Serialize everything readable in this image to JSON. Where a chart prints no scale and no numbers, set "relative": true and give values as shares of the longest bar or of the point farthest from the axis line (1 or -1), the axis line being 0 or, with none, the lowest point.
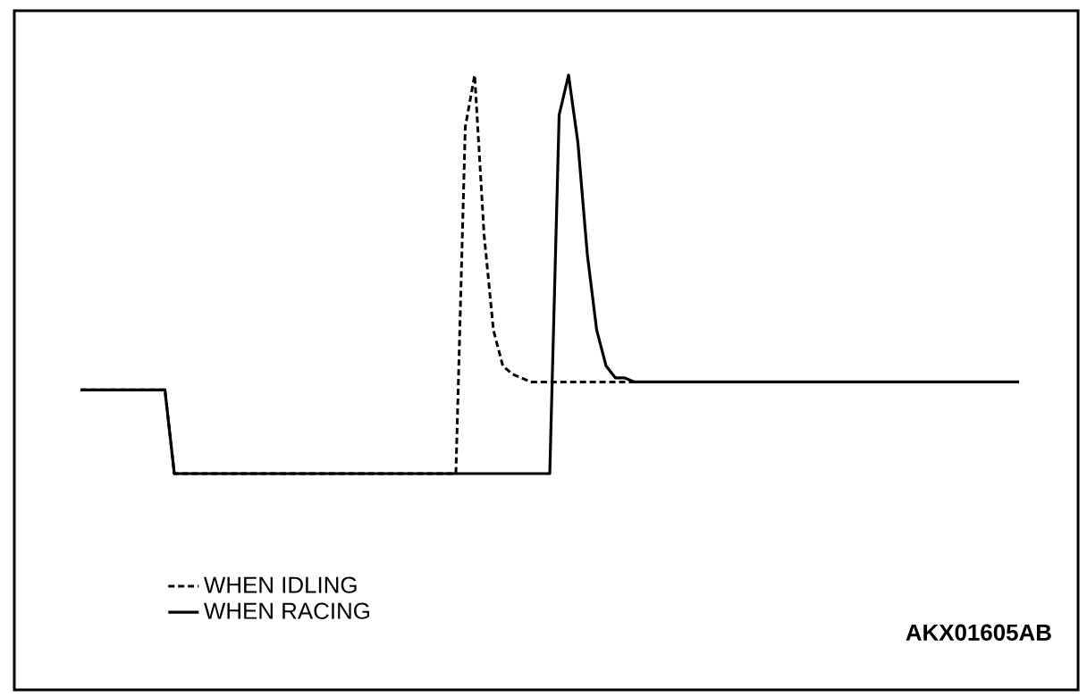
{
  "chart_data": {
    "type": "line",
    "relative": true,
    "legend": "bottom left",
    "annotations": [
      "AKX01605AB"
    ],
    "categories": [
      null,
      null,
      null,
      null,
      null,
      null,
      null,
      null,
      null,
      null,
      null,
      null,
      null,
      null,
      null,
      null,
      null,
      null,
      null,
      null,
      null,
      null,
      null,
      null,
      null,
      null,
      null,
      null,
      null,
      null,
      null,
      null,
      null,
      null,
      null,
      null,
      null,
      null,
      null,
      null,
      null,
      null,
      null,
      null,
      null,
      null,
      null,
      null,
      null,
      null,
      null,
      null,
      null,
      null,
      null,
      null,
      null,
      null,
      null,
      null,
      null,
      null,
      null,
      null,
      null,
      null,
      null,
      null,
      null,
      null,
      null,
      null,
      null,
      null,
      null,
      null,
      null,
      null,
      null,
      null,
      null,
      null,
      null,
      null,
      null,
      null,
      null,
      null,
      null,
      null,
      null,
      null,
      null,
      null,
      null,
      null,
      null,
      null,
      null,
      null,
      null
    ],
    "series": [
      {
        "name": "WHEN IDLING",
        "color": "#000000",
        "line_style": "dashed",
        "values": [
          0.21,
          0.21,
          0.21,
          0.21,
          0.21,
          0.21,
          0.21,
          0.21,
          0.21,
          0.21,
          0,
          0,
          0,
          0,
          0,
          0,
          0,
          0,
          0,
          0,
          0,
          0,
          0,
          0,
          0,
          0,
          0,
          0,
          0,
          0,
          0,
          0,
          0,
          0,
          0,
          0,
          0,
          0,
          0,
          0,
          0,
          0.87,
          1,
          0.6,
          0.36,
          0.27,
          0.25,
          0.24,
          0.23,
          0.23,
          0.23,
          0.23,
          0.23,
          0.23,
          0.23,
          0.23,
          0.23,
          0.23,
          0.23,
          0.23,
          0.23,
          0.23,
          0.23,
          0.23,
          null,
          null,
          null,
          null,
          null,
          null,
          null,
          null,
          null,
          null,
          null,
          null,
          null,
          null,
          null,
          null,
          null,
          null,
          null,
          null,
          null,
          null,
          null,
          null,
          null,
          null,
          null,
          null,
          null,
          null,
          null,
          null,
          null,
          null,
          null,
          null,
          null
        ]
      },
      {
        "name": "WHEN RACING",
        "color": "#000000",
        "line_style": "solid",
        "values": [
          0.21,
          0.21,
          0.21,
          0.21,
          0.21,
          0.21,
          0.21,
          0.21,
          0.21,
          0.21,
          0,
          0,
          0,
          0,
          0,
          0,
          0,
          0,
          0,
          0,
          0,
          0,
          0,
          0,
          0,
          0,
          0,
          0,
          0,
          0,
          0,
          0,
          0,
          0,
          0,
          0,
          0,
          0,
          0,
          0,
          0,
          0,
          0,
          0,
          0,
          0,
          0,
          0,
          0,
          0,
          0,
          0.9,
          1,
          0.83,
          0.55,
          0.36,
          0.27,
          0.24,
          0.24,
          0.23,
          0.23,
          0.23,
          0.23,
          0.23,
          0.23,
          0.23,
          0.23,
          0.23,
          0.23,
          0.23,
          0.23,
          0.23,
          0.23,
          0.23,
          0.23,
          0.23,
          0.23,
          0.23,
          0.23,
          0.23,
          0.23,
          0.23,
          0.23,
          0.23,
          0.23,
          0.23,
          0.23,
          0.23,
          0.23,
          0.23,
          0.23,
          0.23,
          0.23,
          0.23,
          0.23,
          0.23,
          0.23,
          0.23,
          0.23,
          0.23,
          0.23
        ]
      }
    ]
  }
}
